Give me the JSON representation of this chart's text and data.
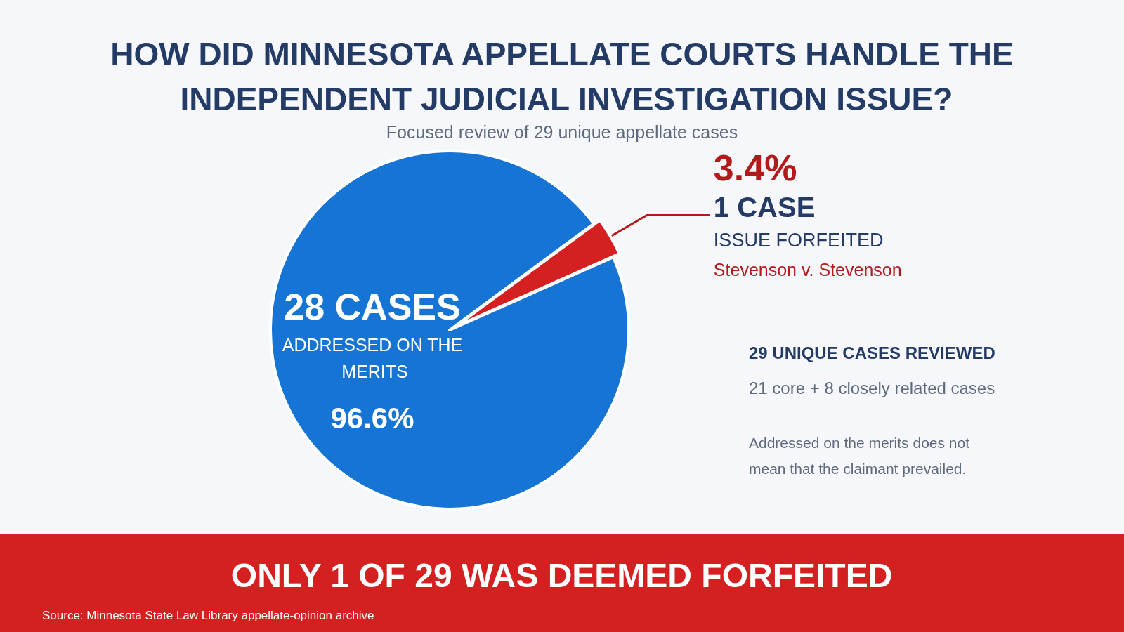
{
  "chart_data": {
    "type": "pie",
    "title": "HOW DID MINNESOTA APPELLATE COURTS HANDLE THE INDEPENDENT JUDICIAL INVESTIGATION ISSUE?",
    "subtitle": "Focused review of 29 unique appellate cases",
    "categories": [
      "ADDRESSED ON THE MERITS",
      "ISSUE FORFEITED"
    ],
    "values": [
      28,
      1
    ],
    "colors": [
      "#1674d4",
      "#d42020"
    ],
    "value_labels": [
      "28 CASES",
      "1 CASE"
    ],
    "annotations": [
      "96.6%",
      "3.4%",
      "Stevenson v. Stevenson",
      "29 UNIQUE CASES REVIEWED",
      "21 core + 8 closely related cases",
      "Addressed on the merits does not mean that the claimant prevailed.",
      "ONLY 1 OF 29 WAS DEEMED FORFEITED",
      "Source: Minnesota State Law Library appellate-opinion archive"
    ],
    "legend": false
  }
}
